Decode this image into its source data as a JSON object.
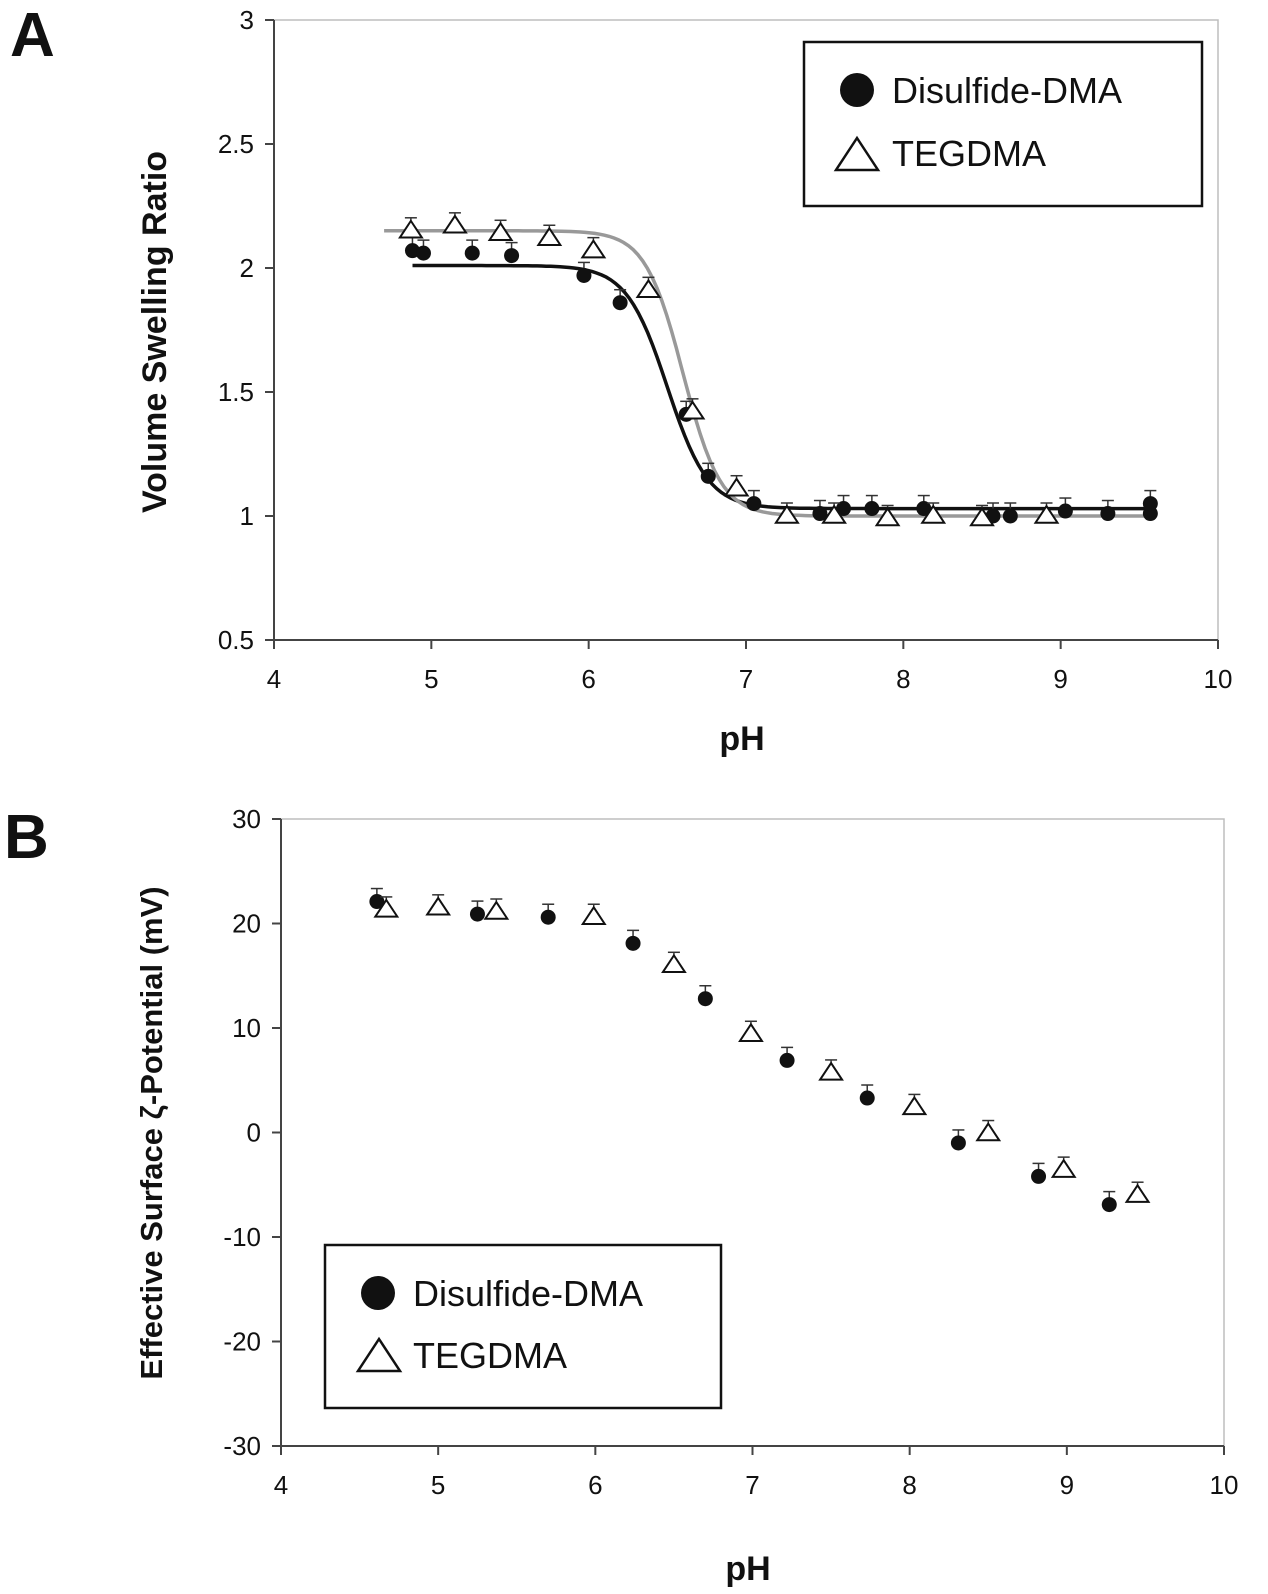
{
  "chart_data": [
    {
      "panel": "A",
      "type": "scatter",
      "xlabel": "pH",
      "ylabel": "Volume Swelling Ratio",
      "xlim": [
        4,
        10
      ],
      "ylim": [
        0.5,
        3
      ],
      "xticks": [
        "4",
        "5",
        "6",
        "7",
        "8",
        "9",
        "10"
      ],
      "yticks": [
        "0.5",
        "1",
        "1.5",
        "2",
        "2.5",
        "3"
      ],
      "grid": false,
      "legend": "top-right",
      "series": [
        {
          "name": "Disulfide-DMA",
          "marker": "filled-circle",
          "color": "#111111",
          "fit_color": "#111111",
          "x": [
            4.88,
            4.95,
            5.26,
            5.51,
            5.97,
            6.2,
            6.62,
            6.76,
            7.05,
            7.47,
            7.62,
            7.8,
            8.13,
            8.57,
            8.68,
            9.03,
            9.3,
            9.57,
            9.57
          ],
          "y": [
            2.07,
            2.06,
            2.06,
            2.05,
            1.97,
            1.86,
            1.41,
            1.16,
            1.05,
            1.01,
            1.03,
            1.03,
            1.03,
            1.0,
            1.0,
            1.02,
            1.01,
            1.01,
            1.05
          ],
          "fit": {
            "low": 1.03,
            "high": 2.01,
            "pKa": 6.5,
            "slope": 0.13,
            "x_from": 4.88,
            "x_to": 9.57
          }
        },
        {
          "name": "TEGDMA",
          "marker": "open-triangle",
          "color": "#111111",
          "fit_color": "#999999",
          "x": [
            4.87,
            5.15,
            5.44,
            5.75,
            6.03,
            6.38,
            6.66,
            6.94,
            7.26,
            7.56,
            7.9,
            8.19,
            8.5,
            8.91
          ],
          "y": [
            2.15,
            2.17,
            2.14,
            2.12,
            2.07,
            1.91,
            1.42,
            1.11,
            1.0,
            1.0,
            0.99,
            1.0,
            0.99,
            1.0
          ],
          "fit": {
            "low": 1.0,
            "high": 2.15,
            "pKa": 6.6,
            "slope": 0.12,
            "x_from": 4.7,
            "x_to": 9.57
          }
        }
      ]
    },
    {
      "panel": "B",
      "type": "scatter",
      "xlabel": "pH",
      "ylabel": "Effective Surface ζ-Potential (mV)",
      "xlim": [
        4,
        10
      ],
      "ylim": [
        -30,
        30
      ],
      "xticks": [
        "4",
        "5",
        "6",
        "7",
        "8",
        "9",
        "10"
      ],
      "yticks": [
        "-30",
        "-20",
        "-10",
        "0",
        "10",
        "20",
        "30"
      ],
      "grid": false,
      "legend": "bottom-left",
      "series": [
        {
          "name": "Disulfide-DMA",
          "marker": "filled-circle",
          "color": "#111111",
          "x": [
            4.61,
            5.25,
            5.7,
            6.24,
            6.7,
            7.22,
            7.73,
            8.31,
            8.82,
            9.27
          ],
          "y": [
            22.1,
            20.9,
            20.6,
            18.1,
            12.8,
            6.9,
            3.3,
            -1.0,
            -4.2,
            -6.9
          ]
        },
        {
          "name": "TEGDMA",
          "marker": "open-triangle",
          "color": "#111111",
          "x": [
            4.67,
            5.0,
            5.37,
            5.99,
            6.5,
            6.99,
            7.5,
            8.03,
            8.5,
            8.98,
            9.45
          ],
          "y": [
            21.3,
            21.5,
            21.1,
            20.6,
            16.0,
            9.4,
            5.7,
            2.4,
            -0.1,
            -3.6,
            -6.0
          ]
        }
      ]
    }
  ]
}
